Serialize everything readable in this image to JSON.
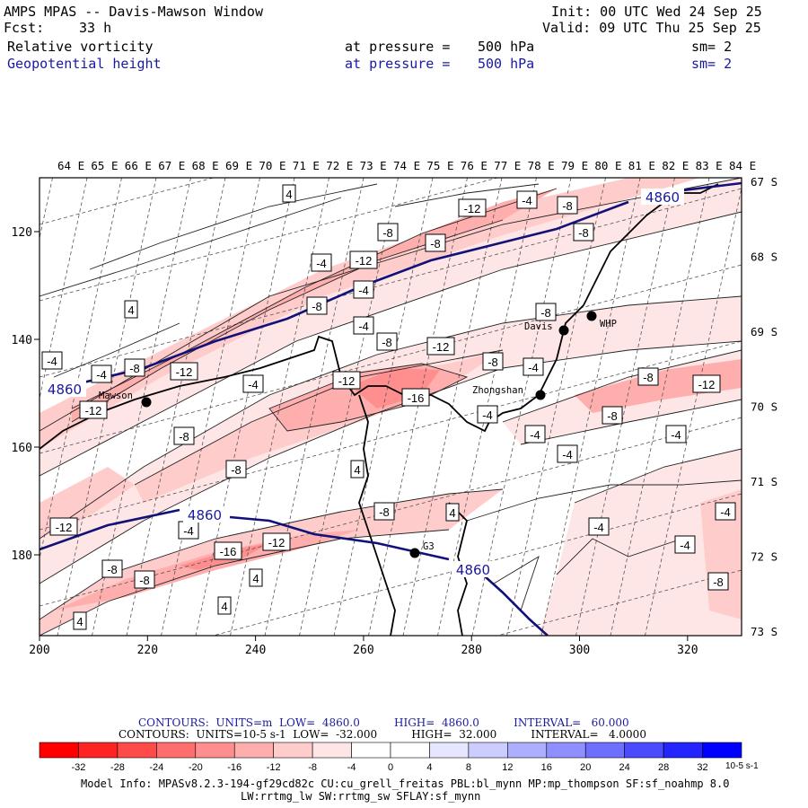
{
  "header": {
    "title": "AMPS MPAS -- Davis-Mawson Window",
    "forecast_label": "Fcst:",
    "forecast_hours": "33 h",
    "init": "Init: 00 UTC Wed 24 Sep 25",
    "valid": "Valid: 09 UTC Thu 25 Sep 25",
    "field1_name": "Relative vorticity",
    "field1_level_label": "at pressure =",
    "field1_level": "500 hPa",
    "field1_smooth": "sm= 2",
    "field2_name": "Geopotential height",
    "field2_level_label": "at pressure =",
    "field2_level": "500 hPa",
    "field2_smooth": "sm= 2"
  },
  "chart_data": {
    "type": "contour-map",
    "x_axis": {
      "ticks": [
        200,
        220,
        240,
        260,
        280,
        300,
        320
      ],
      "range": [
        200,
        330
      ]
    },
    "y_axis": {
      "ticks": [
        120,
        140,
        160,
        180
      ],
      "range": [
        110,
        195
      ],
      "inverted": true
    },
    "lon_labels": [
      "64 E",
      "65 E",
      "66 E",
      "67 E",
      "68 E",
      "69 E",
      "70 E",
      "71 E",
      "72 E",
      "73 E",
      "74 E",
      "75 E",
      "76 E",
      "77 E",
      "78 E",
      "79 E",
      "80 E",
      "81 E",
      "82 E",
      "83 E",
      "84 E"
    ],
    "lat_labels": [
      "67 S",
      "68 S",
      "69 S",
      "70 S",
      "71 S",
      "72 S",
      "73 S"
    ],
    "stations": [
      {
        "name": "Mawson"
      },
      {
        "name": "Davis"
      },
      {
        "name": "WHP"
      },
      {
        "name": "Zhongshan"
      },
      {
        "name": "G3"
      }
    ],
    "height_contour_labels": [
      "4860",
      "4860",
      "4860",
      "4860"
    ],
    "vorticity_labels": [
      "-4",
      "-8",
      "-12",
      "-8",
      "-8",
      "-12",
      "-4",
      "-12",
      "-4",
      "-8",
      "-4",
      "-4",
      "-8",
      "-12",
      "-4",
      "-8",
      "-4",
      "-12",
      "-16",
      "-4",
      "-8",
      "-12",
      "-4",
      "-8",
      "-8",
      "-8",
      "-12",
      "-4",
      "-16",
      "-12",
      "-8",
      "-8",
      "4",
      "4",
      "4",
      "-4",
      "-4",
      "-4",
      "-4",
      "-4",
      "-8",
      "-4",
      "4",
      "-4",
      "-8",
      "-4",
      "4"
    ],
    "color_scale": {
      "ticks": [
        "-32",
        "-28",
        "-24",
        "-20",
        "-16",
        "-12",
        "-8",
        "-4",
        "0",
        "4",
        "8",
        "12",
        "16",
        "20",
        "24",
        "28",
        "32"
      ],
      "unit": "10-5 s-1",
      "colors": [
        "#ff0000",
        "#ff2424",
        "#ff4a4a",
        "#ff6e6e",
        "#ff8f8f",
        "#ffaeae",
        "#ffcccc",
        "#ffe6e6",
        "#ffffff",
        "#ffffff",
        "#e6e6ff",
        "#ccccff",
        "#aeaeff",
        "#8f8fff",
        "#6e6eff",
        "#4a4aff",
        "#2424ff",
        "#0000ff"
      ]
    }
  },
  "legend": {
    "line1": "CONTOURS:  UNITS=m  LOW=  4860.0          HIGH=  4860.0          INTERVAL=   60.000",
    "line2": "CONTOURS:  UNITS=10-5 s-1  LOW=  -32.000          HIGH=  32.000          INTERVAL=   4.0000"
  },
  "footer": {
    "model_info": "Model Info: MPASv8.2.3-194-gf29cd82c CU:cu_grell_freitas PBL:bl_mynn MP:mp_thompson SF:sf_noahmp 8.0",
    "model_info2": "LW:rrtmg_lw SW:rrtmg_sw SFLAY:sf_mynn"
  },
  "colors": {
    "height_line": "#11117a",
    "text_blue": "#1a1aa0"
  }
}
